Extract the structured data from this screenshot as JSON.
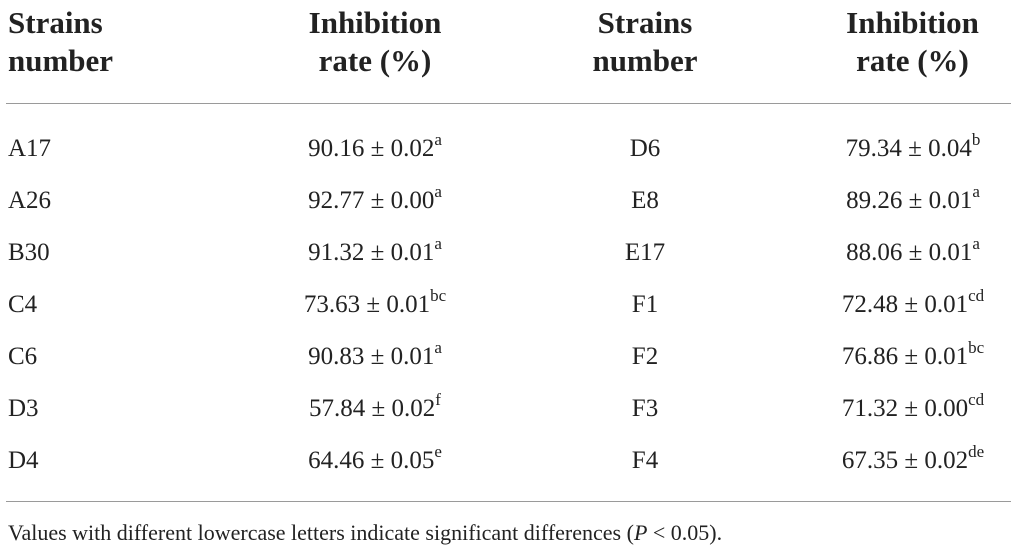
{
  "headers": {
    "strains_left": [
      "Strains",
      "number"
    ],
    "rate_left": [
      "Inhibition",
      "rate (%)"
    ],
    "strains_right": [
      "Strains",
      "number"
    ],
    "rate_right": [
      "Inhibition",
      "rate (%)"
    ]
  },
  "rows": [
    {
      "strain1": "A17",
      "value1": "90.16 ± 0.02",
      "sup1": "a",
      "strain2": "D6",
      "value2": "79.34 ± 0.04",
      "sup2": "b"
    },
    {
      "strain1": "A26",
      "value1": "92.77 ± 0.00",
      "sup1": "a",
      "strain2": "E8",
      "value2": "89.26 ± 0.01",
      "sup2": "a"
    },
    {
      "strain1": "B30",
      "value1": "91.32 ± 0.01",
      "sup1": "a",
      "strain2": "E17",
      "value2": "88.06 ± 0.01",
      "sup2": "a"
    },
    {
      "strain1": "C4",
      "value1": "73.63 ± 0.01",
      "sup1": "bc",
      "strain2": "F1",
      "value2": "72.48 ± 0.01",
      "sup2": "cd"
    },
    {
      "strain1": "C6",
      "value1": "90.83 ± 0.01",
      "sup1": "a",
      "strain2": "F2",
      "value2": "76.86 ± 0.01",
      "sup2": "bc"
    },
    {
      "strain1": "D3",
      "value1": "57.84 ± 0.02",
      "sup1": "f",
      "strain2": "F3",
      "value2": "71.32 ± 0.00",
      "sup2": "cd"
    },
    {
      "strain1": "D4",
      "value1": "64.46 ± 0.05",
      "sup1": "e",
      "strain2": "F4",
      "value2": "67.35 ± 0.02",
      "sup2": "de"
    }
  ],
  "footnote": {
    "prefix": "Values with different lowercase letters indicate significant differences (",
    "p_symbol": "P",
    "suffix": " < 0.05)."
  }
}
